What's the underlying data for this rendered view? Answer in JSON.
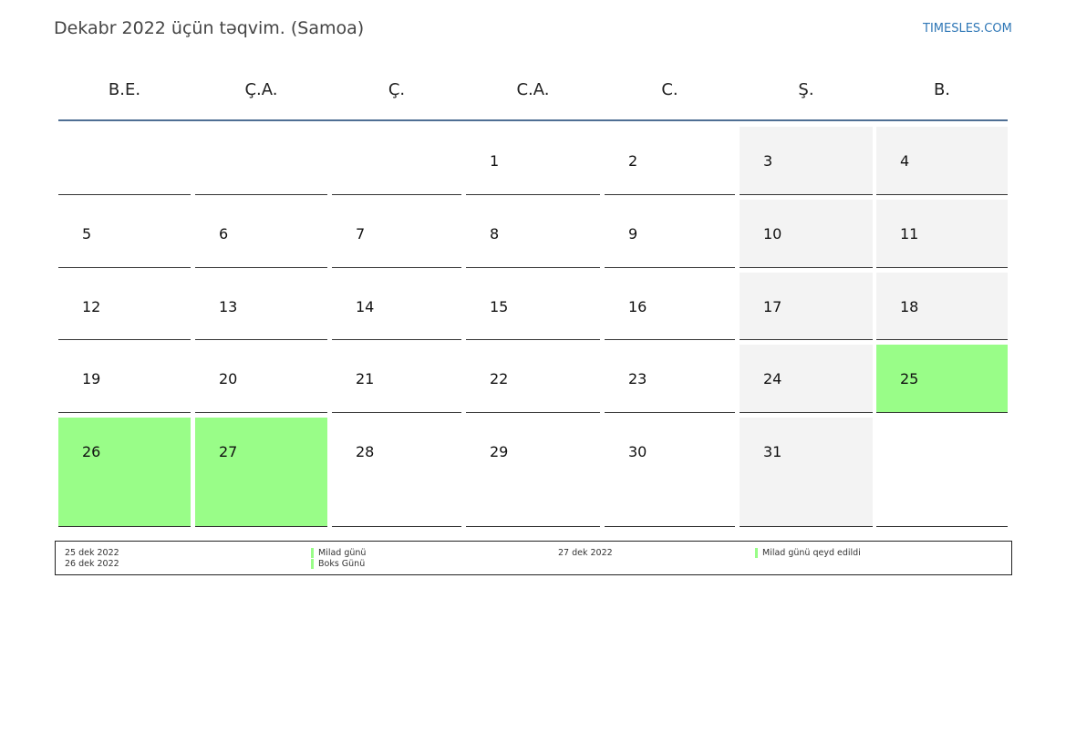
{
  "header": {
    "title": "Dekabr 2022 üçün təqvim. (Samoa)",
    "site": "TIMESLES.COM"
  },
  "weekdays": [
    "B.E.",
    "Ç.A.",
    "Ç.",
    "C.A.",
    "C.",
    "Ş.",
    "B."
  ],
  "weeks": [
    [
      null,
      null,
      null,
      1,
      2,
      3,
      4
    ],
    [
      5,
      6,
      7,
      8,
      9,
      10,
      11
    ],
    [
      12,
      13,
      14,
      15,
      16,
      17,
      18
    ],
    [
      19,
      20,
      21,
      22,
      23,
      24,
      25
    ],
    [
      26,
      27,
      28,
      29,
      30,
      31,
      null
    ]
  ],
  "weekend_color": "#f3f3f3",
  "holiday_color": "#99fd88",
  "holidays": [
    {
      "date": "25 dek 2022",
      "name": "Milad günü"
    },
    {
      "date": "26 dek 2022",
      "name": "Boks Günü"
    },
    {
      "date": "27 dek 2022",
      "name": "Milad günü qeyd edildi"
    }
  ]
}
